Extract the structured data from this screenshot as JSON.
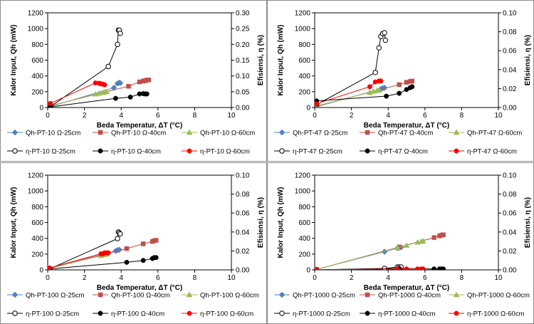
{
  "chart_data": [
    {
      "type": "scatter",
      "xlabel": "Beda Temperatur, ΔT (°C)",
      "ylabel": "Kalor Input, Qh (mW)",
      "y2label": "Efisiensi, η (%)",
      "xlim": [
        0,
        10
      ],
      "ylim": [
        0,
        1200
      ],
      "y2lim": [
        0,
        0.3
      ],
      "xticks": [
        0,
        2,
        4,
        6,
        8,
        10
      ],
      "yticks": [
        0,
        200,
        400,
        600,
        800,
        1000,
        1200
      ],
      "y2ticks": [
        "0.00",
        "0.05",
        "0.10",
        "0.15",
        "0.20",
        "0.25",
        "0.30"
      ],
      "grid": false,
      "legend_position": "bottom",
      "series": [
        {
          "name": "Qh-PT-10 Ω-25cm",
          "axis": "left",
          "color": "#4f81bd",
          "marker": "diamond",
          "x": [
            0.1,
            3.6,
            3.8,
            3.9,
            3.95
          ],
          "y": [
            10,
            250,
            305,
            315,
            310
          ]
        },
        {
          "name": "Qh-PT-10 Ω-40cm",
          "axis": "left",
          "color": "#c0504d",
          "marker": "square",
          "x": [
            0.1,
            4.4,
            5.0,
            5.2,
            5.3,
            5.4,
            5.5
          ],
          "y": [
            20,
            270,
            325,
            335,
            340,
            348,
            350
          ]
        },
        {
          "name": "Qh-PT-10 Ω-60cm",
          "axis": "left",
          "color": "#9bbb59",
          "marker": "triangle",
          "x": [
            0.1,
            2.6,
            2.8,
            3.0,
            3.1,
            3.2
          ],
          "y": [
            20,
            170,
            180,
            190,
            195,
            200
          ]
        },
        {
          "name": "η-PT-10 Ω-25cm",
          "axis": "right",
          "color": "#000000",
          "marker": "open-circle",
          "x": [
            0.15,
            3.3,
            3.8,
            3.85,
            3.9,
            3.95
          ],
          "y": [
            0.003,
            0.13,
            0.2,
            0.245,
            0.245,
            0.235
          ]
        },
        {
          "name": "η-PT-10 Ω-40cm",
          "axis": "right",
          "color": "#000000",
          "marker": "circle",
          "x": [
            0.15,
            3.7,
            4.5,
            5.0,
            5.2,
            5.3,
            5.4
          ],
          "y": [
            0.002,
            0.029,
            0.033,
            0.043,
            0.044,
            0.043,
            0.043
          ]
        },
        {
          "name": "η-PT-10 Ω-60cm",
          "axis": "right",
          "color": "#ff0000",
          "marker": "circle",
          "x": [
            0.15,
            2.6,
            2.8,
            2.9,
            3.0,
            3.1
          ],
          "y": [
            0.013,
            0.078,
            0.077,
            0.075,
            0.074,
            0.072
          ]
        }
      ]
    },
    {
      "type": "scatter",
      "xlabel": "Beda Temperatur, ΔT (°C)",
      "ylabel": "Kalor Input, Qh (mW)",
      "y2label": "Efisiensi, η (%)",
      "xlim": [
        0,
        10
      ],
      "ylim": [
        0,
        1200
      ],
      "y2lim": [
        0,
        0.1
      ],
      "xticks": [
        0,
        2,
        4,
        6,
        8,
        10
      ],
      "yticks": [
        0,
        200,
        400,
        600,
        800,
        1000,
        1200
      ],
      "y2ticks": [
        "0.00",
        "0.02",
        "0.04",
        "0.06",
        "0.08",
        "0.10"
      ],
      "grid": false,
      "legend_position": "bottom",
      "series": [
        {
          "name": "Qh-PT-47 Ω-25cm",
          "axis": "left",
          "color": "#4f81bd",
          "marker": "diamond",
          "x": [
            0.1,
            3.6,
            3.7,
            3.8
          ],
          "y": [
            10,
            235,
            245,
            250
          ]
        },
        {
          "name": "Qh-PT-47 Ω-40cm",
          "axis": "left",
          "color": "#c0504d",
          "marker": "square",
          "x": [
            0.1,
            4.6,
            5.0,
            5.2,
            5.3
          ],
          "y": [
            20,
            290,
            320,
            330,
            335
          ]
        },
        {
          "name": "Qh-PT-47 Ω-60cm",
          "axis": "left",
          "color": "#9bbb59",
          "marker": "triangle",
          "x": [
            0.1,
            3.0,
            3.2,
            3.4,
            3.5
          ],
          "y": [
            20,
            190,
            205,
            215,
            220
          ]
        },
        {
          "name": "η-PT-47 Ω-25cm",
          "axis": "right",
          "color": "#000000",
          "marker": "open-circle",
          "x": [
            0.1,
            3.3,
            3.5,
            3.6,
            3.7,
            3.8,
            3.85
          ],
          "y": [
            0.003,
            0.037,
            0.063,
            0.075,
            0.078,
            0.079,
            0.071
          ]
        },
        {
          "name": "η-PT-47 Ω-40cm",
          "axis": "right",
          "color": "#000000",
          "marker": "circle",
          "x": [
            0.1,
            3.9,
            4.6,
            5.0,
            5.2,
            5.3
          ],
          "y": [
            0.007,
            0.012,
            0.015,
            0.019,
            0.021,
            0.022
          ]
        },
        {
          "name": "η-PT-47 Ω-60cm",
          "axis": "right",
          "color": "#ff0000",
          "marker": "circle",
          "x": [
            0.1,
            3.0,
            3.3,
            3.5,
            3.6
          ],
          "y": [
            0.004,
            0.022,
            0.027,
            0.028,
            0.028
          ]
        }
      ]
    },
    {
      "type": "scatter",
      "xlabel": "Beda Temperatur, ΔT (°C)",
      "ylabel": "Kalor Input, Qh (mW)",
      "y2label": "Efisiensi, η (%)",
      "xlim": [
        0,
        10
      ],
      "ylim": [
        0,
        1200
      ],
      "y2lim": [
        0,
        0.1
      ],
      "xticks": [
        0,
        2,
        4,
        6,
        8,
        10
      ],
      "yticks": [
        0,
        200,
        400,
        600,
        800,
        1000,
        1200
      ],
      "y2ticks": [
        "0.00",
        "0.02",
        "0.04",
        "0.06",
        "0.08",
        "0.10"
      ],
      "grid": false,
      "legend_position": "bottom",
      "series": [
        {
          "name": "Qh-PT-100 Ω-25cm",
          "axis": "left",
          "color": "#4f81bd",
          "marker": "diamond",
          "x": [
            0.1,
            3.7,
            3.8,
            3.9
          ],
          "y": [
            20,
            240,
            250,
            255
          ]
        },
        {
          "name": "Qh-PT-100 Ω-40cm",
          "axis": "left",
          "color": "#c0504d",
          "marker": "square",
          "x": [
            0.1,
            4.3,
            5.2,
            5.7,
            5.8,
            5.9
          ],
          "y": [
            20,
            270,
            330,
            360,
            370,
            375
          ]
        },
        {
          "name": "Qh-PT-100 Ω-60cm",
          "axis": "left",
          "color": "#9bbb59",
          "marker": "triangle",
          "x": [
            0.1,
            2.9,
            3.0,
            3.1,
            3.2
          ],
          "y": [
            20,
            180,
            190,
            195,
            200
          ]
        },
        {
          "name": "η-PT-100 Ω-25cm",
          "axis": "right",
          "color": "#000000",
          "marker": "open-circle",
          "x": [
            0.1,
            3.8,
            3.85,
            3.9,
            3.95
          ],
          "y": [
            0.001,
            0.033,
            0.04,
            0.039,
            0.038
          ]
        },
        {
          "name": "η-PT-100 Ω-40cm",
          "axis": "right",
          "color": "#000000",
          "marker": "circle",
          "x": [
            0.1,
            4.3,
            5.2,
            5.7,
            5.8,
            5.9
          ],
          "y": [
            0.001,
            0.008,
            0.01,
            0.012,
            0.013,
            0.013
          ]
        },
        {
          "name": "η-PT-100 Ω-60cm",
          "axis": "right",
          "color": "#ff0000",
          "marker": "circle",
          "x": [
            0.1,
            2.9,
            3.0,
            3.1,
            3.2,
            3.3
          ],
          "y": [
            0.002,
            0.017,
            0.017,
            0.018,
            0.018,
            0.018
          ]
        }
      ]
    },
    {
      "type": "scatter",
      "xlabel": "Beda Temperatur, ΔT (°C)",
      "ylabel": "Kalor Input, Qh (mW)",
      "y2label": "Efisiensi, η (%)",
      "xlim": [
        0,
        10
      ],
      "ylim": [
        0,
        1200
      ],
      "y2lim": [
        0,
        0.1
      ],
      "xticks": [
        0,
        2,
        4,
        6,
        8,
        10
      ],
      "yticks": [
        0,
        200,
        400,
        600,
        800,
        1000,
        1200
      ],
      "y2ticks": [
        "0.00",
        "0.02",
        "0.04",
        "0.06",
        "0.08",
        "0.10"
      ],
      "grid": false,
      "legend_position": "bottom",
      "series": [
        {
          "name": "Qh-PT-1000 Ω-25cm",
          "axis": "left",
          "color": "#4f81bd",
          "marker": "diamond",
          "x": [
            0.1,
            3.8,
            4.5,
            4.6,
            4.7
          ],
          "y": [
            5,
            230,
            275,
            280,
            285
          ]
        },
        {
          "name": "Qh-PT-1000 Ω-40cm",
          "axis": "left",
          "color": "#c0504d",
          "marker": "square",
          "x": [
            0.1,
            4.6,
            6.5,
            6.8,
            6.9,
            7.0
          ],
          "y": [
            5,
            290,
            410,
            430,
            440,
            445
          ]
        },
        {
          "name": "Qh-PT-1000 Ω-60cm",
          "axis": "left",
          "color": "#9bbb59",
          "marker": "triangle",
          "x": [
            0.1,
            4.5,
            5.0,
            5.6,
            5.8,
            5.9
          ],
          "y": [
            5,
            280,
            310,
            350,
            360,
            365
          ]
        },
        {
          "name": "η-PT-1000 Ω-25cm",
          "axis": "right",
          "color": "#000000",
          "marker": "open-circle",
          "x": [
            0.1,
            3.8,
            4.5,
            4.6,
            4.7
          ],
          "y": [
            0.0,
            0.0015,
            0.003,
            0.003,
            0.003
          ]
        },
        {
          "name": "η-PT-1000 Ω-40cm",
          "axis": "right",
          "color": "#000000",
          "marker": "circle",
          "x": [
            0.1,
            4.6,
            6.5,
            6.8,
            6.9,
            7.0
          ],
          "y": [
            0.0,
            0.0015,
            0.001,
            0.001,
            0.001,
            0.001
          ]
        },
        {
          "name": "η-PT-1000 Ω-60cm",
          "axis": "right",
          "color": "#ff0000",
          "marker": "circle",
          "x": [
            0.1,
            4.5,
            5.0,
            5.6,
            5.8,
            5.9
          ],
          "y": [
            0.0,
            0.001,
            0.001,
            0.001,
            0.001,
            0.001
          ]
        }
      ]
    }
  ]
}
